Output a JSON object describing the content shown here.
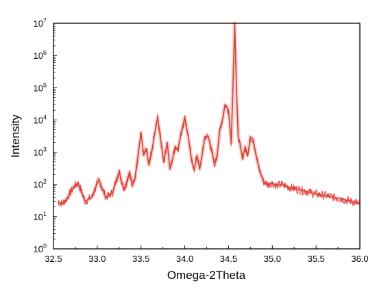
{
  "chart_data": {
    "type": "line",
    "title": "",
    "xlabel": "Omega-2Theta",
    "ylabel": "Intensity",
    "xlim": [
      32.5,
      36.0
    ],
    "ylim": [
      1,
      10000000
    ],
    "y_scale": "log",
    "grid": false,
    "legend": "none",
    "colors": {
      "series": "#c84a2e",
      "noise": "#ee1c1c",
      "halo": "#f6c7cd",
      "axis": "#000000"
    },
    "x_ticks": [
      "32.5",
      "33.0",
      "33.5",
      "34.0",
      "34.5",
      "35.0",
      "35.5",
      "36.0"
    ],
    "y_ticks": [
      {
        "base": "10",
        "exp": "0"
      },
      {
        "base": "10",
        "exp": "1"
      },
      {
        "base": "10",
        "exp": "2"
      },
      {
        "base": "10",
        "exp": "3"
      },
      {
        "base": "10",
        "exp": "4"
      },
      {
        "base": "10",
        "exp": "5"
      },
      {
        "base": "10",
        "exp": "6"
      },
      {
        "base": "10",
        "exp": "7"
      }
    ],
    "series": [
      {
        "x": [
          32.55,
          32.6,
          32.65,
          32.7,
          32.74,
          32.78,
          32.82,
          32.86,
          32.9,
          32.94,
          32.98,
          33.02,
          33.06,
          33.1,
          33.14,
          33.18,
          33.22,
          33.25,
          33.28,
          33.31,
          33.34,
          33.37,
          33.4,
          33.43,
          33.46,
          33.5,
          33.53,
          33.56,
          33.59,
          33.62,
          33.65,
          33.69,
          33.72,
          33.76,
          33.8,
          33.83,
          33.86,
          33.89,
          33.92,
          33.96,
          34.0,
          34.04,
          34.08,
          34.11,
          34.14,
          34.17,
          34.2,
          34.23,
          34.27,
          34.31,
          34.34,
          34.37,
          34.4,
          34.43,
          34.46,
          34.5,
          34.53,
          34.55,
          34.57,
          34.59,
          34.61,
          34.63,
          34.66,
          34.69,
          34.72,
          34.75,
          34.78,
          34.81,
          34.85,
          34.9,
          34.95,
          35.0,
          35.05,
          35.1,
          35.2,
          35.3,
          35.4,
          35.5,
          35.6,
          35.7,
          35.8,
          35.9,
          36.0
        ],
        "y": [
          30,
          25,
          35,
          60,
          90,
          110,
          60,
          30,
          35,
          40,
          80,
          140,
          70,
          40,
          45,
          60,
          140,
          250,
          120,
          70,
          130,
          250,
          90,
          150,
          600,
          4000,
          800,
          1200,
          400,
          900,
          3000,
          12000,
          3000,
          500,
          2000,
          300,
          600,
          1500,
          1200,
          4000,
          12000,
          3000,
          500,
          300,
          800,
          300,
          900,
          3000,
          3000,
          1000,
          400,
          800,
          5000,
          10000,
          30000,
          20000,
          2000,
          100000,
          10000000,
          100000,
          3000,
          2000,
          600,
          1500,
          800,
          3000,
          2500,
          900,
          300,
          120,
          100,
          110,
          90,
          100,
          80,
          70,
          60,
          50,
          45,
          40,
          35,
          30,
          25
        ]
      }
    ]
  }
}
